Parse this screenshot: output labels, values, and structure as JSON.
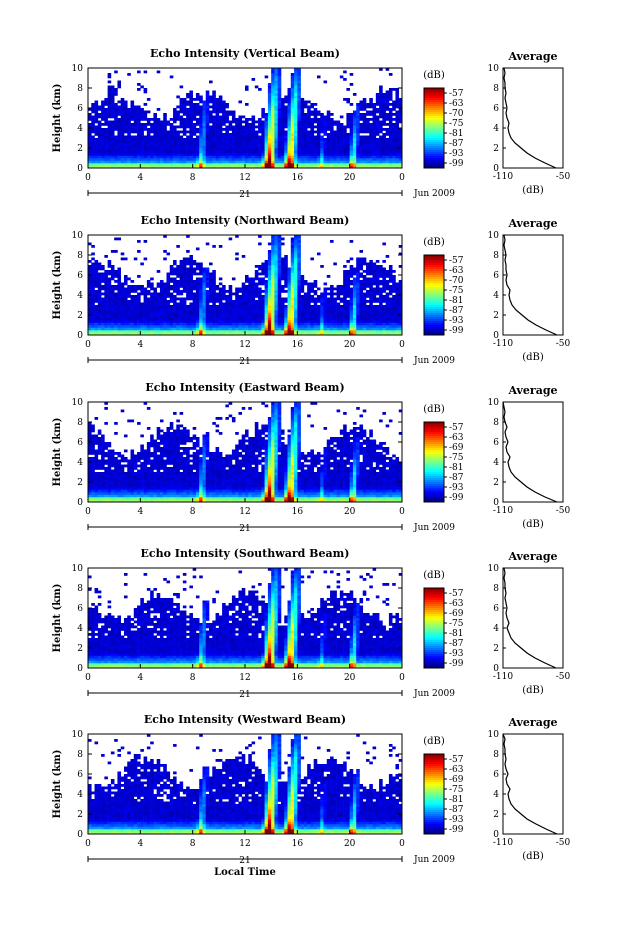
{
  "chart_data": [
    {
      "type": "heatmap",
      "title": "Echo Intensity (Vertical Beam)",
      "ylabel": "Height (km)",
      "ylim": [
        0,
        10
      ],
      "xlim": [
        0,
        24
      ],
      "x_ticks": [
        "0",
        "4",
        "8",
        "12",
        "16",
        "20",
        "0"
      ],
      "y_ticks": [
        "0",
        "2",
        "4",
        "6",
        "8",
        "10"
      ],
      "day_label": "21",
      "date_label": "Jun 2009",
      "colorbar_unit": "(dB)",
      "colorbar_ticks": [
        "-57",
        "-63",
        "-70",
        "-75",
        "-81",
        "-87",
        "-93",
        "-99"
      ],
      "profile": {
        "title": "Average",
        "xlabel": "(dB)",
        "x_ticks": [
          "-110",
          "-50"
        ],
        "xlim": [
          -110,
          -50
        ],
        "y_ticks": [
          "0",
          "2",
          "4",
          "6",
          "8",
          "10"
        ],
        "height_km": [
          0,
          0.5,
          1,
          1.5,
          2,
          2.5,
          3,
          3.5,
          4,
          4.5,
          5,
          5.5,
          6,
          6.5,
          7,
          7.5,
          8,
          8.5,
          9,
          9.5,
          10
        ],
        "value_db": [
          -57,
          -68,
          -78,
          -86,
          -92,
          -98,
          -102,
          -104,
          -105,
          -104,
          -106,
          -107,
          -106,
          -107,
          -108,
          -107,
          -108,
          -108,
          -109,
          -108,
          -109
        ]
      }
    },
    {
      "type": "heatmap",
      "title": "Echo Intensity (Northward Beam)",
      "ylabel": "Height (km)",
      "ylim": [
        0,
        10
      ],
      "xlim": [
        0,
        24
      ],
      "x_ticks": [
        "0",
        "4",
        "8",
        "12",
        "16",
        "20",
        "0"
      ],
      "y_ticks": [
        "0",
        "2",
        "4",
        "6",
        "8",
        "10"
      ],
      "day_label": "21",
      "date_label": "Jun 2009",
      "colorbar_unit": "(dB)",
      "colorbar_ticks": [
        "-57",
        "-63",
        "-70",
        "-75",
        "-81",
        "-87",
        "-93",
        "-99"
      ],
      "profile": {
        "title": "Average",
        "xlabel": "(dB)",
        "x_ticks": [
          "-110",
          "-50"
        ],
        "xlim": [
          -110,
          -50
        ],
        "y_ticks": [
          "0",
          "2",
          "4",
          "6",
          "8",
          "10"
        ],
        "height_km": [
          0,
          0.5,
          1,
          1.5,
          2,
          2.5,
          3,
          3.5,
          4,
          4.5,
          5,
          5.5,
          6,
          6.5,
          7,
          7.5,
          8,
          8.5,
          9,
          9.5,
          10
        ],
        "value_db": [
          -56,
          -67,
          -77,
          -85,
          -91,
          -97,
          -101,
          -103,
          -104,
          -103,
          -106,
          -107,
          -106,
          -107,
          -107,
          -108,
          -107,
          -108,
          -109,
          -108,
          -109
        ]
      }
    },
    {
      "type": "heatmap",
      "title": "Echo Intensity (Eastward Beam)",
      "ylabel": "Height (km)",
      "ylim": [
        0,
        10
      ],
      "xlim": [
        0,
        24
      ],
      "x_ticks": [
        "0",
        "4",
        "8",
        "12",
        "16",
        "20",
        "0"
      ],
      "y_ticks": [
        "0",
        "2",
        "4",
        "6",
        "8",
        "10"
      ],
      "day_label": "21",
      "date_label": "Jun 2009",
      "colorbar_unit": "(dB)",
      "colorbar_ticks": [
        "-57",
        "-63",
        "-69",
        "-75",
        "-81",
        "-87",
        "-93",
        "-99"
      ],
      "profile": {
        "title": "Average",
        "xlabel": "(dB)",
        "x_ticks": [
          "-110",
          "-50"
        ],
        "xlim": [
          -110,
          -50
        ],
        "y_ticks": [
          "0",
          "2",
          "4",
          "6",
          "8",
          "10"
        ],
        "height_km": [
          0,
          0.5,
          1,
          1.5,
          2,
          2.5,
          3,
          3.5,
          4,
          4.5,
          5,
          5.5,
          6,
          6.5,
          7,
          7.5,
          8,
          8.5,
          9,
          9.5,
          10
        ],
        "value_db": [
          -56,
          -68,
          -78,
          -86,
          -92,
          -98,
          -102,
          -104,
          -105,
          -103,
          -106,
          -107,
          -105,
          -107,
          -108,
          -106,
          -108,
          -109,
          -108,
          -109,
          -110
        ]
      }
    },
    {
      "type": "heatmap",
      "title": "Echo Intensity (Southward Beam)",
      "ylabel": "Height (km)",
      "ylim": [
        0,
        10
      ],
      "xlim": [
        0,
        24
      ],
      "x_ticks": [
        "0",
        "4",
        "8",
        "12",
        "16",
        "20",
        "0"
      ],
      "y_ticks": [
        "0",
        "2",
        "4",
        "6",
        "8",
        "10"
      ],
      "day_label": "21",
      "date_label": "Jun 2009",
      "colorbar_unit": "(dB)",
      "colorbar_ticks": [
        "-57",
        "-63",
        "-69",
        "-75",
        "-81",
        "-87",
        "-93",
        "-99"
      ],
      "profile": {
        "title": "Average",
        "xlabel": "(dB)",
        "x_ticks": [
          "-110",
          "-50"
        ],
        "xlim": [
          -110,
          -50
        ],
        "y_ticks": [
          "0",
          "2",
          "4",
          "6",
          "8",
          "10"
        ],
        "height_km": [
          0,
          0.5,
          1,
          1.5,
          2,
          2.5,
          3,
          3.5,
          4,
          4.5,
          5,
          5.5,
          6,
          6.5,
          7,
          7.5,
          8,
          8.5,
          9,
          9.5,
          10
        ],
        "value_db": [
          -57,
          -68,
          -78,
          -86,
          -92,
          -98,
          -102,
          -104,
          -106,
          -104,
          -106,
          -107,
          -106,
          -107,
          -108,
          -107,
          -108,
          -108,
          -109,
          -108,
          -109
        ]
      }
    },
    {
      "type": "heatmap",
      "title": "Echo Intensity (Westward Beam)",
      "ylabel": "Height (km)",
      "ylim": [
        0,
        10
      ],
      "xlim": [
        0,
        24
      ],
      "x_ticks": [
        "0",
        "4",
        "8",
        "12",
        "16",
        "20",
        "0"
      ],
      "y_ticks": [
        "0",
        "2",
        "4",
        "6",
        "8",
        "10"
      ],
      "day_label": "21",
      "date_label": "Jun 2009",
      "colorbar_unit": "(dB)",
      "colorbar_ticks": [
        "-57",
        "-63",
        "-69",
        "-75",
        "-81",
        "-87",
        "-93",
        "-99"
      ],
      "xlabel": "Local Time",
      "profile": {
        "title": "Average",
        "xlabel": "(dB)",
        "x_ticks": [
          "-110",
          "-50"
        ],
        "xlim": [
          -110,
          -50
        ],
        "y_ticks": [
          "0",
          "2",
          "4",
          "6",
          "8",
          "10"
        ],
        "height_km": [
          0,
          0.5,
          1,
          1.5,
          2,
          2.5,
          3,
          3.5,
          4,
          4.5,
          5,
          5.5,
          6,
          6.5,
          7,
          7.5,
          8,
          8.5,
          9,
          9.5,
          10
        ],
        "value_db": [
          -56,
          -67,
          -77,
          -86,
          -92,
          -98,
          -102,
          -104,
          -105,
          -103,
          -106,
          -107,
          -105,
          -107,
          -108,
          -107,
          -108,
          -108,
          -109,
          -108,
          -110
        ]
      }
    }
  ]
}
